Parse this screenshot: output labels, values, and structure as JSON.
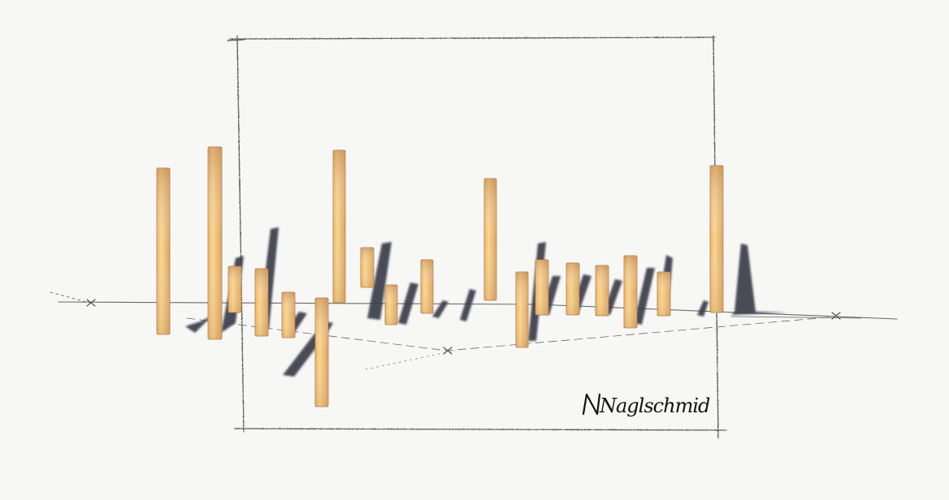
{
  "artwork": {
    "signature": "Naglschmid",
    "colors": {
      "paper": "#f7f7f6",
      "pencil": "#5a5a5a",
      "bar_light": "#f6c97a",
      "bar_dark": "#c9955a",
      "shadow": "#3c3f4c"
    }
  }
}
